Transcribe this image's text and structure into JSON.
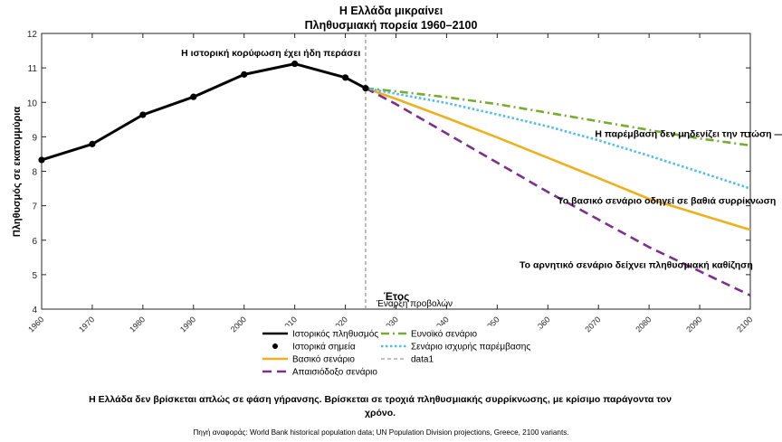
{
  "chart_data": {
    "type": "line",
    "title": "Η Ελλάδα μικραίνει",
    "subtitle": "Πληθυσμιακή πορεία 1960–2100",
    "xlabel": "Έτος",
    "ylabel": "Πληθυσμός σε εκατομμύρια",
    "xlim": [
      1960,
      2100
    ],
    "ylim": [
      4,
      12
    ],
    "xticks": [
      "1960",
      "1970",
      "1980",
      "1990",
      "2000",
      "2010",
      "2020",
      "2030",
      "2040",
      "2050",
      "2060",
      "2070",
      "2080",
      "2090",
      "2100"
    ],
    "yticks": [
      "4",
      "5",
      "6",
      "7",
      "8",
      "9",
      "10",
      "11",
      "12"
    ],
    "grid": false,
    "projection_start": 2024,
    "projection_label": "Έναρξη προβολών",
    "series": [
      {
        "name": "Ιστορικός πληθυσμός",
        "color": "#000000",
        "style": "solid",
        "x": [
          1960,
          1970,
          1980,
          1990,
          2000,
          2010,
          2020,
          2024
        ],
        "y": [
          8.33,
          8.79,
          9.64,
          10.16,
          10.81,
          11.12,
          10.72,
          10.41
        ]
      },
      {
        "name": "Ιστορικά σημεία",
        "color": "#000000",
        "style": "markers",
        "x": [
          1960,
          1970,
          1980,
          1990,
          2000,
          2010,
          2020,
          2024
        ],
        "y": [
          8.33,
          8.79,
          9.64,
          10.16,
          10.81,
          11.12,
          10.72,
          10.41
        ]
      },
      {
        "name": "Βασικό σενάριο",
        "color": "#EDB120",
        "style": "solid",
        "x": [
          2024,
          2030,
          2040,
          2050,
          2060,
          2070,
          2080,
          2090,
          2100
        ],
        "y": [
          10.41,
          10.1,
          9.55,
          8.98,
          8.39,
          7.8,
          7.2,
          6.75,
          6.3
        ]
      },
      {
        "name": "Απαισιόδοξο σενάριο",
        "color": "#7E2F8E",
        "style": "dashed",
        "x": [
          2024,
          2030,
          2040,
          2050,
          2060,
          2070,
          2080,
          2090,
          2100
        ],
        "y": [
          10.41,
          9.95,
          9.1,
          8.25,
          7.4,
          6.6,
          5.8,
          5.1,
          4.4
        ]
      },
      {
        "name": "Ευνοϊκό σενάριο",
        "color": "#77AC30",
        "style": "dashdot",
        "x": [
          2024,
          2030,
          2040,
          2050,
          2060,
          2070,
          2080,
          2090,
          2100
        ],
        "y": [
          10.41,
          10.32,
          10.15,
          9.95,
          9.7,
          9.45,
          9.2,
          8.95,
          8.75
        ]
      },
      {
        "name": "Σενάριο ισχυρής παρέμβασης",
        "color": "#4DBEEE",
        "style": "dotted",
        "x": [
          2024,
          2030,
          2040,
          2050,
          2060,
          2070,
          2080,
          2090,
          2100
        ],
        "y": [
          10.41,
          10.25,
          9.98,
          9.65,
          9.3,
          8.9,
          8.45,
          7.98,
          7.5
        ]
      }
    ],
    "legend_extra": "data1",
    "legend_placement": "bottom-center",
    "annotations": [
      {
        "text": "Η ιστορική κορύφωση έχει ήδη περάσει",
        "x": 2023,
        "y": 11.34,
        "anchor": "end"
      },
      {
        "text": "Η παρέμβαση δεν μηδενίζει την πτώση — την επιβραδύνει",
        "x": 2095.5,
        "y": 9.0,
        "anchor": "middle"
      },
      {
        "text": "Το βασικό σενάριο οδηγεί σε βαθιά συρρίκνωση",
        "x": 2083.5,
        "y": 7.05,
        "anchor": "middle"
      },
      {
        "text": "Το αρνητικό σενάριο δείχνει πληθυσμιακή καθίζηση",
        "x": 2100.5,
        "y": 5.2,
        "anchor": "end"
      }
    ]
  },
  "caption": "Η Ελλάδα δεν βρίσκεται απλώς σε φάση γήρανσης. Βρίσκεται σε τροχιά πληθυσμιακής συρρίκνωσης, με κρίσιμο παράγοντα τον χρόνο.",
  "source": "Πηγή αναφοράς: World Bank historical population data; UN Population Division projections, Greece, 2100 variants."
}
